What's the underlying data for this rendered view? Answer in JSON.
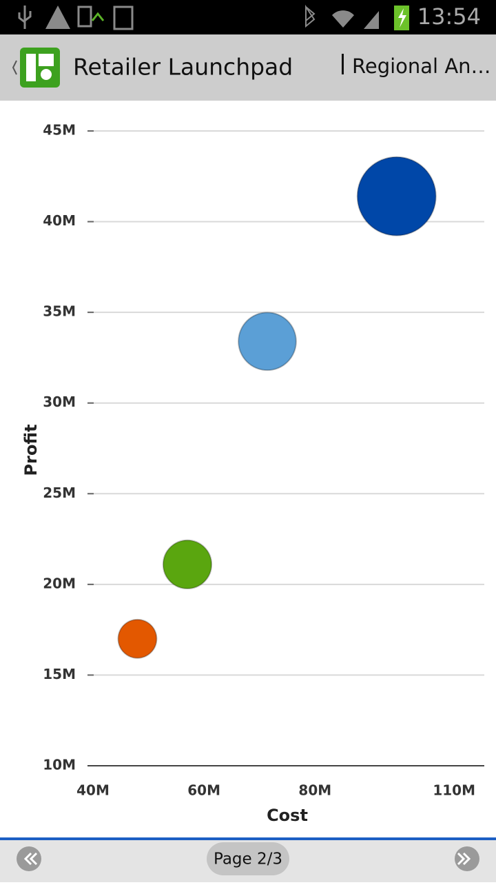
{
  "status_bar": {
    "time": "13:54"
  },
  "header": {
    "title": "Retailer Launchpad",
    "tab": "Regional An…"
  },
  "chart_data": {
    "type": "scatter",
    "x_label": "Cost",
    "y_label": "Profit",
    "x": [
      48000000,
      57000000,
      71400000,
      94700000
    ],
    "values": [
      17000000,
      21100000,
      33400000,
      41400000
    ],
    "sizes": [
      24,
      38,
      54,
      100
    ],
    "colors": [
      "#e35800",
      "#5aa60f",
      "#5b9fd6",
      "#0047a8"
    ],
    "xlim": [
      40000000,
      110000000
    ],
    "xticks": [
      {
        "value": 40000000,
        "label": "40M"
      },
      {
        "value": 60000000,
        "label": "60M"
      },
      {
        "value": 80000000,
        "label": "80M"
      },
      {
        "value": 110000000,
        "label": "110M"
      }
    ],
    "ylim": [
      10000000,
      45000000
    ],
    "yticks": [
      {
        "value": 10000000,
        "label": "10M"
      },
      {
        "value": 15000000,
        "label": "15M"
      },
      {
        "value": 20000000,
        "label": "20M"
      },
      {
        "value": 25000000,
        "label": "25M"
      },
      {
        "value": 30000000,
        "label": "30M"
      },
      {
        "value": 35000000,
        "label": "35M"
      },
      {
        "value": 40000000,
        "label": "40M"
      },
      {
        "value": 45000000,
        "label": "45M"
      }
    ],
    "grid": true
  },
  "footer": {
    "page": "Page 2/3"
  }
}
